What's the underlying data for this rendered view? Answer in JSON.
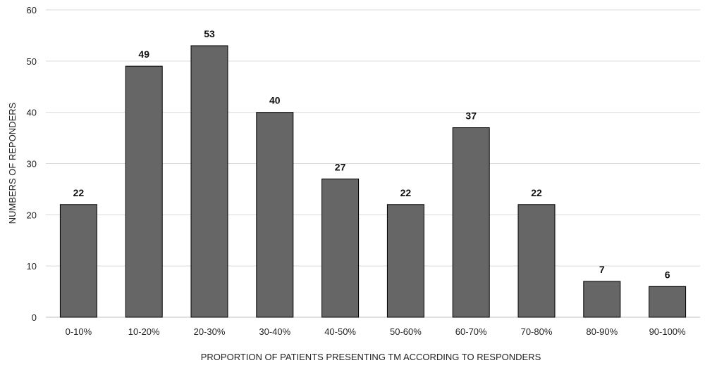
{
  "chart_data": {
    "type": "bar",
    "categories": [
      "0-10%",
      "10-20%",
      "20-30%",
      "30-40%",
      "40-50%",
      "50-60%",
      "60-70%",
      "70-80%",
      "80-90%",
      "90-100%"
    ],
    "values": [
      22,
      49,
      53,
      40,
      27,
      22,
      37,
      22,
      7,
      6
    ],
    "data_labels": [
      "22",
      "49",
      "53",
      "40",
      "27",
      "22",
      "37",
      "22",
      "7",
      "6"
    ],
    "xlabel": "PROPORTION OF PATIENTS PRESENTING TM ACCORDING TO RESPONDERS",
    "ylabel": "NUMBERS OF REPONDERS",
    "ylim": [
      0,
      60
    ],
    "yticks": [
      "0",
      "10",
      "20",
      "30",
      "40",
      "50",
      "60"
    ],
    "grid": true,
    "bar_color": "#666666",
    "bar_edge_color": "#000000"
  }
}
